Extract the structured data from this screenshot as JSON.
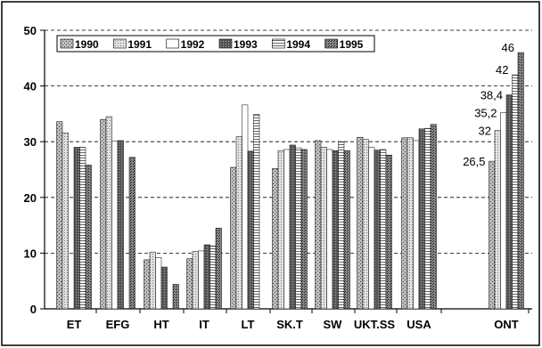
{
  "chart_data": {
    "type": "bar",
    "categories": [
      "ET",
      "EFG",
      "HT",
      "IT",
      "LT",
      "SK.T",
      "SW",
      "UKT.SS",
      "USA",
      "ONT"
    ],
    "series": [
      {
        "name": "1990",
        "values": [
          33.6,
          34.0,
          8.8,
          9.0,
          25.4,
          25.2,
          30.2,
          30.8,
          30.7,
          26.5
        ]
      },
      {
        "name": "1991",
        "values": [
          31.6,
          34.5,
          10.2,
          10.3,
          30.9,
          28.4,
          29.0,
          30.4,
          30.7,
          32.0
        ]
      },
      {
        "name": "1992",
        "values": [
          null,
          30.1,
          9.2,
          10.4,
          36.6,
          28.6,
          28.6,
          29.0,
          30.2,
          35.2
        ]
      },
      {
        "name": "1993",
        "values": [
          29.0,
          30.2,
          7.5,
          11.5,
          28.3,
          29.4,
          28.4,
          28.5,
          32.3,
          38.4
        ]
      },
      {
        "name": "1994",
        "values": [
          29.0,
          null,
          null,
          11.3,
          34.9,
          28.9,
          30.0,
          28.6,
          32.4,
          42.0
        ]
      },
      {
        "name": "1995",
        "values": [
          25.8,
          27.2,
          4.4,
          14.5,
          null,
          28.6,
          28.4,
          27.6,
          33.1,
          46.0
        ]
      }
    ],
    "data_labels": [
      "26,5",
      "32",
      "35,2",
      "38,4",
      "42",
      "46"
    ],
    "ylim": [
      0,
      50
    ],
    "yticks": [
      "0",
      "10",
      "20",
      "30",
      "40",
      "50"
    ],
    "grid": true,
    "legend_position": "top-left",
    "title": "",
    "xlabel": "",
    "ylabel": "",
    "colors": {
      "1990": "#9a9a9a",
      "1991": "#c4c4c4",
      "1992": "#ffffff",
      "1993": "#3a3a3a",
      "1994": "#d2d2d2",
      "1995": "#6a6a6a"
    }
  }
}
